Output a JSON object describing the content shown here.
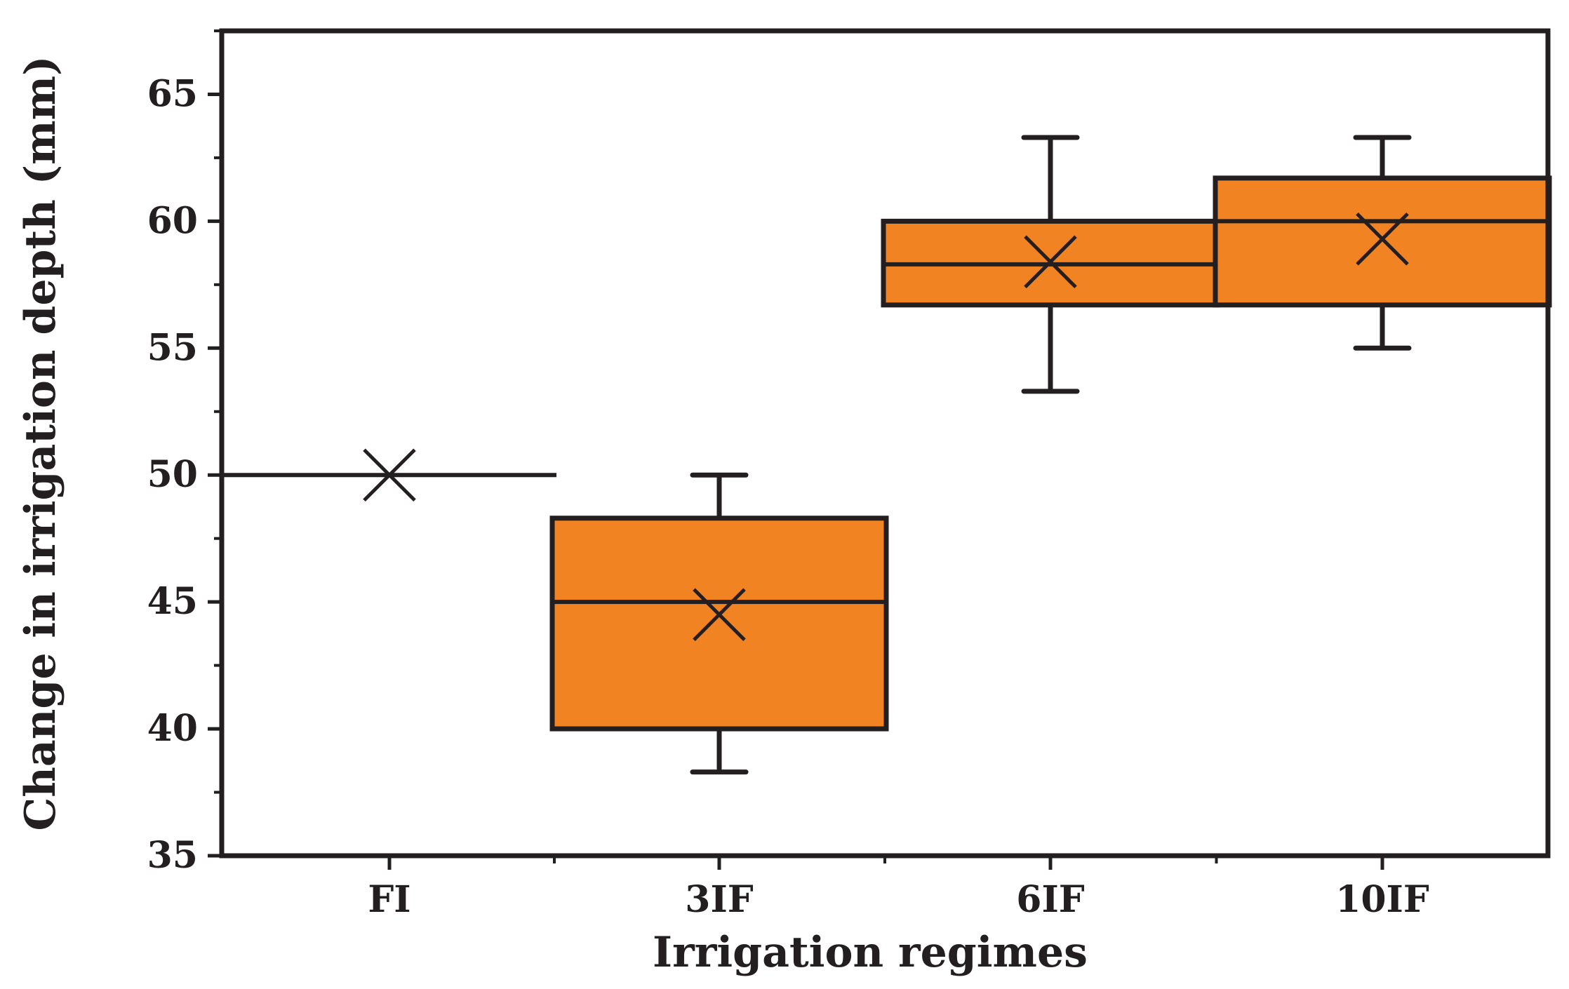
{
  "chart_data": {
    "type": "box",
    "title": "",
    "xlabel": "Irrigation regimes",
    "ylabel": "Change in irrigation depth (mm)",
    "ylim": [
      35,
      67.5
    ],
    "yticks": [
      35,
      40,
      45,
      50,
      55,
      60,
      65
    ],
    "categories": [
      "FI",
      "3IF",
      "6IF",
      "10IF"
    ],
    "boxes": [
      {
        "category": "FI",
        "min": 50,
        "q1": 50,
        "median": 50,
        "q3": 50,
        "max": 50,
        "mean": 50
      },
      {
        "category": "3IF",
        "min": 38.3,
        "q1": 40,
        "median": 45,
        "q3": 48.3,
        "max": 50,
        "mean": 44.5
      },
      {
        "category": "6IF",
        "min": 53.3,
        "q1": 56.7,
        "median": 58.3,
        "q3": 60,
        "max": 63.3,
        "mean": 58.4
      },
      {
        "category": "10IF",
        "min": 55,
        "q1": 56.7,
        "median": 60,
        "q3": 61.7,
        "max": 63.3,
        "mean": 59.3
      }
    ],
    "colors": {
      "box_fill": "#f28322",
      "stroke": "#231f20"
    }
  }
}
